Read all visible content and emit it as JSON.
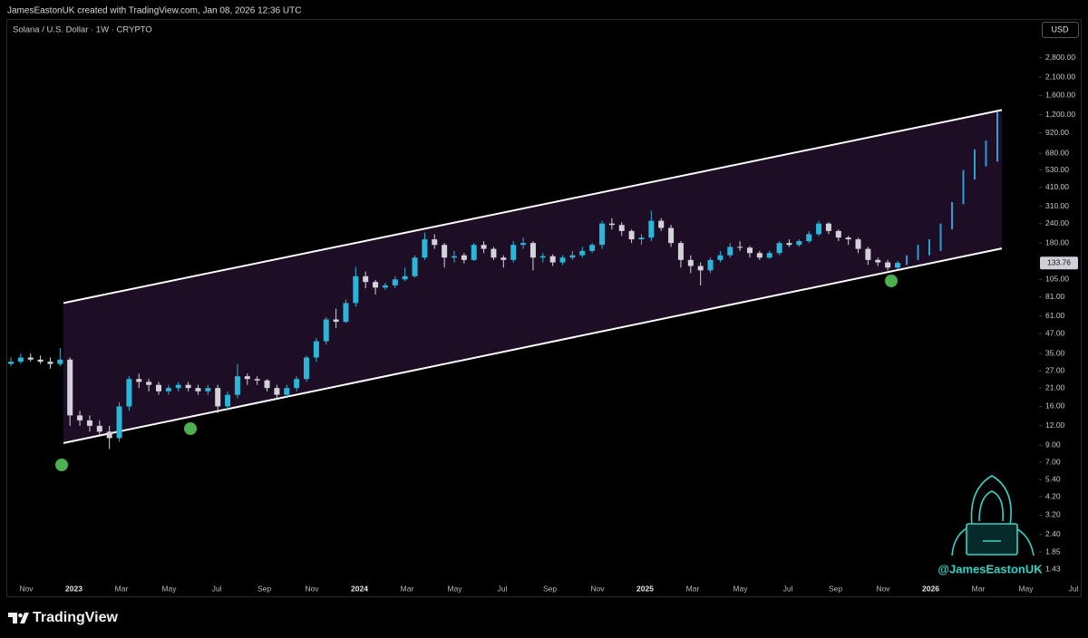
{
  "header": {
    "attribution": "JamesEastonUK created with TradingView.com, Jan 08, 2026 12:36 UTC",
    "symbol": "Solana / U.S. Dollar · 1W · CRYPTO",
    "currency": "USD"
  },
  "chart_data": {
    "type": "candlestick",
    "log_scale": true,
    "up_color": "#29b6d8",
    "down_color": "#d2d2d8",
    "open": [
      30,
      31,
      33,
      32,
      31,
      30,
      32,
      14,
      13,
      12,
      11,
      10,
      16,
      24,
      23,
      22,
      20,
      21,
      22,
      21,
      20,
      21,
      16,
      19,
      25,
      24,
      23.5,
      21,
      19,
      21,
      24,
      33,
      42,
      58,
      56,
      74,
      110,
      101,
      93,
      96,
      105,
      110,
      145,
      190,
      175,
      145,
      150,
      140,
      175,
      165,
      145,
      140,
      175,
      180,
      145,
      148,
      135,
      145,
      150,
      160,
      175,
      240,
      235,
      215,
      190,
      195,
      250,
      225,
      180,
      140,
      128,
      120,
      140,
      150,
      170,
      168,
      155,
      145,
      155,
      180,
      175,
      185,
      205,
      240,
      215,
      195,
      190,
      165,
      140,
      135,
      125
    ],
    "high": [
      33,
      35,
      35,
      34,
      33,
      38,
      33,
      15,
      14,
      13,
      12,
      17,
      25,
      26,
      24,
      23,
      22,
      23,
      23,
      22,
      22,
      22,
      20,
      30,
      26,
      25,
      24,
      22,
      22,
      25,
      34,
      44,
      60,
      68,
      78,
      126,
      118,
      104,
      100,
      110,
      125,
      150,
      210,
      205,
      180,
      160,
      155,
      180,
      185,
      170,
      150,
      185,
      195,
      185,
      155,
      152,
      150,
      160,
      170,
      180,
      250,
      260,
      245,
      220,
      205,
      290,
      260,
      235,
      185,
      150,
      135,
      145,
      160,
      180,
      185,
      172,
      160,
      160,
      185,
      190,
      190,
      215,
      250,
      245,
      220,
      200,
      195,
      170,
      145,
      140,
      138
    ],
    "low": [
      29,
      30,
      31,
      30,
      28,
      29,
      12,
      12,
      11,
      10.5,
      8.5,
      9.5,
      15,
      21,
      20,
      19,
      19,
      20,
      20,
      19,
      19,
      14.5,
      15,
      18,
      22,
      22,
      20,
      18,
      18.5,
      20,
      23,
      31,
      40,
      51,
      55,
      70,
      92,
      84,
      90,
      92,
      102,
      108,
      140,
      165,
      125,
      135,
      133,
      138,
      155,
      140,
      125,
      135,
      165,
      120,
      135,
      128,
      130,
      140,
      145,
      155,
      165,
      220,
      200,
      180,
      175,
      185,
      215,
      170,
      125,
      115,
      96,
      115,
      135,
      145,
      160,
      145,
      140,
      142,
      150,
      170,
      170,
      180,
      200,
      205,
      185,
      175,
      155,
      130,
      128,
      120,
      122
    ],
    "close": [
      31,
      33,
      32,
      31,
      30,
      32,
      14,
      13,
      12,
      11,
      10,
      16,
      24,
      23,
      22,
      20,
      21,
      22,
      21,
      20,
      21,
      16,
      19,
      25,
      24,
      23.5,
      21,
      19,
      21,
      24,
      33,
      42,
      58,
      56,
      74,
      110,
      101,
      93,
      96,
      105,
      110,
      145,
      190,
      175,
      145,
      148,
      140,
      175,
      165,
      145,
      140,
      175,
      180,
      145,
      148,
      135,
      145,
      150,
      160,
      175,
      240,
      235,
      215,
      190,
      195,
      250,
      225,
      180,
      140,
      128,
      120,
      140,
      150,
      170,
      168,
      155,
      145,
      155,
      180,
      175,
      185,
      205,
      240,
      215,
      195,
      190,
      165,
      140,
      135,
      125,
      134
    ],
    "ylim": [
      0.96,
      4900
    ],
    "yticks": [
      {
        "value": 2800,
        "label": "2,800.00"
      },
      {
        "value": 2100,
        "label": "2,100.00"
      },
      {
        "value": 1600,
        "label": "1,600.00"
      },
      {
        "value": 1200,
        "label": "1,200.00"
      },
      {
        "value": 920,
        "label": "920.00"
      },
      {
        "value": 680,
        "label": "680.00"
      },
      {
        "value": 530,
        "label": "530.00"
      },
      {
        "value": 410,
        "label": "410.00"
      },
      {
        "value": 310,
        "label": "310.00"
      },
      {
        "value": 240,
        "label": "240.00"
      },
      {
        "value": 180,
        "label": "180.00"
      },
      {
        "value": 105,
        "label": "105.00"
      },
      {
        "value": 81,
        "label": "81.00"
      },
      {
        "value": 61,
        "label": "61.00"
      },
      {
        "value": 47,
        "label": "47.00"
      },
      {
        "value": 35,
        "label": "35.00"
      },
      {
        "value": 27,
        "label": "27.00"
      },
      {
        "value": 21,
        "label": "21.00"
      },
      {
        "value": 16,
        "label": "16.00"
      },
      {
        "value": 12,
        "label": "12.00"
      },
      {
        "value": 9,
        "label": "9.00"
      },
      {
        "value": 7,
        "label": "7.00"
      },
      {
        "value": 5.4,
        "label": "5.40"
      },
      {
        "value": 4.2,
        "label": "4.20"
      },
      {
        "value": 3.2,
        "label": "3.20"
      },
      {
        "value": 2.4,
        "label": "2.40"
      },
      {
        "value": 1.85,
        "label": "1.85"
      },
      {
        "value": 1.43,
        "label": "1.43"
      }
    ],
    "x_labels": [
      "Nov",
      "2023",
      "Mar",
      "May",
      "Jul",
      "Sep",
      "Nov",
      "2024",
      "Mar",
      "May",
      "Jul",
      "Sep",
      "Nov",
      "2025",
      "Mar",
      "May",
      "Jul",
      "Sep",
      "Nov",
      "2026",
      "Mar",
      "May",
      "Jul"
    ],
    "channel": {
      "upper": [
        74,
        1290
      ],
      "lower": [
        9.3,
        166
      ],
      "fill": "#1d0e25",
      "color": "#ffffff"
    },
    "projection": {
      "color": "#2a9fd6",
      "low": [
        130,
        140,
        150,
        160,
        220,
        320,
        460,
        560,
        600
      ],
      "high": [
        150,
        175,
        190,
        240,
        330,
        530,
        720,
        820,
        1250
      ]
    },
    "last_price": 133.76,
    "watermark": "@JamesEastonUK"
  },
  "footer": {
    "brand": "TradingView"
  }
}
